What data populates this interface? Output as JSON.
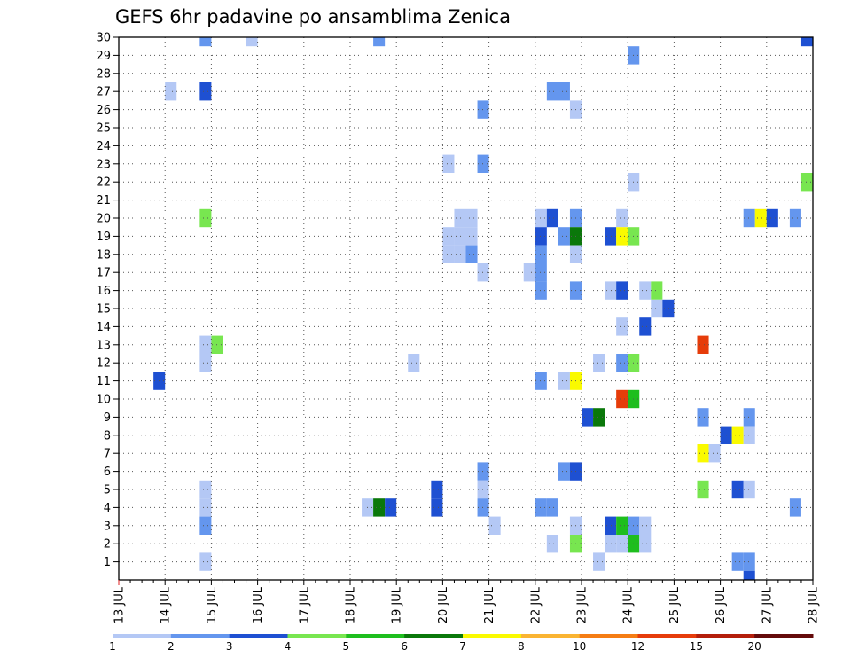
{
  "chart_data": {
    "type": "heatmap",
    "title": "GEFS 6hr padavine po ansamblima Zenica",
    "xlabel": "",
    "ylabel": "",
    "x_ticks": [
      "13 JUL",
      "14 JUL",
      "15 JUL",
      "16 JUL",
      "17 JUL",
      "18 JUL",
      "19 JUL",
      "20 JUL",
      "21 JUL",
      "22 JUL",
      "23 JUL",
      "24 JUL",
      "25 JUL",
      "26 JUL",
      "27 JUL",
      "28 JUL"
    ],
    "y_ticks": [
      1,
      2,
      3,
      4,
      5,
      6,
      7,
      8,
      9,
      10,
      11,
      12,
      13,
      14,
      15,
      16,
      17,
      18,
      19,
      20,
      21,
      22,
      23,
      24,
      25,
      26,
      27,
      28,
      29,
      30
    ],
    "x_range_days": [
      0,
      15
    ],
    "y_range": [
      0,
      30
    ],
    "grid": true,
    "legend": {
      "position": "bottom",
      "colors": [
        "#b4c8f5",
        "#6496ee",
        "#1e50d2",
        "#78e650",
        "#1ebe1e",
        "#0a780a",
        "#fafa00",
        "#fab432",
        "#f57d14",
        "#e63c0a",
        "#b41e0a",
        "#640a0a"
      ],
      "labels": [
        "1",
        "2",
        "3",
        "4",
        "5",
        "6",
        "7",
        "8",
        "10",
        "12",
        "15",
        "20"
      ]
    },
    "cells_format": "[day, member, level]",
    "cells": [
      [
        1.75,
        30,
        1
      ],
      [
        2.75,
        30,
        0
      ],
      [
        5.5,
        30,
        1
      ],
      [
        14.75,
        30,
        2
      ],
      [
        11.0,
        29,
        1
      ],
      [
        1.0,
        27,
        0
      ],
      [
        1.75,
        27,
        2
      ],
      [
        9.25,
        27,
        1
      ],
      [
        9.5,
        27,
        1
      ],
      [
        7.75,
        26,
        1
      ],
      [
        9.75,
        26,
        0
      ],
      [
        7.75,
        23,
        1
      ],
      [
        7.0,
        23,
        0
      ],
      [
        11.0,
        22,
        0
      ],
      [
        14.75,
        22,
        3
      ],
      [
        1.75,
        20,
        3
      ],
      [
        7.25,
        20,
        0
      ],
      [
        7.5,
        20,
        0
      ],
      [
        9.0,
        20,
        0
      ],
      [
        9.25,
        20,
        2
      ],
      [
        9.75,
        20,
        1
      ],
      [
        10.75,
        20,
        0
      ],
      [
        13.5,
        20,
        1
      ],
      [
        13.75,
        20,
        6
      ],
      [
        14.0,
        20,
        2
      ],
      [
        14.5,
        20,
        1
      ],
      [
        7.0,
        19,
        0
      ],
      [
        7.25,
        19,
        0
      ],
      [
        7.5,
        19,
        0
      ],
      [
        9.0,
        19,
        2
      ],
      [
        9.5,
        19,
        1
      ],
      [
        9.75,
        19,
        5
      ],
      [
        10.5,
        19,
        2
      ],
      [
        10.75,
        19,
        6
      ],
      [
        11.0,
        19,
        3
      ],
      [
        7.0,
        18,
        0
      ],
      [
        7.25,
        18,
        0
      ],
      [
        7.5,
        18,
        1
      ],
      [
        9.0,
        18,
        1
      ],
      [
        9.75,
        18,
        0
      ],
      [
        7.75,
        17,
        0
      ],
      [
        8.75,
        17,
        0
      ],
      [
        9.0,
        17,
        1
      ],
      [
        9.0,
        16,
        1
      ],
      [
        9.75,
        16,
        1
      ],
      [
        10.5,
        16,
        0
      ],
      [
        10.75,
        16,
        2
      ],
      [
        11.25,
        16,
        0
      ],
      [
        11.5,
        16,
        3
      ],
      [
        11.5,
        15,
        0
      ],
      [
        11.75,
        15,
        2
      ],
      [
        10.75,
        14,
        0
      ],
      [
        11.25,
        14,
        2
      ],
      [
        1.75,
        13,
        0
      ],
      [
        2.0,
        13,
        3
      ],
      [
        12.5,
        13,
        9
      ],
      [
        1.75,
        12,
        0
      ],
      [
        6.25,
        12,
        0
      ],
      [
        10.25,
        12,
        0
      ],
      [
        10.75,
        12,
        1
      ],
      [
        11.0,
        12,
        3
      ],
      [
        0.75,
        11,
        2
      ],
      [
        9.0,
        11,
        1
      ],
      [
        9.5,
        11,
        0
      ],
      [
        9.75,
        11,
        6
      ],
      [
        10.75,
        10,
        9
      ],
      [
        11.0,
        10,
        4
      ],
      [
        10.0,
        9,
        2
      ],
      [
        10.25,
        9,
        5
      ],
      [
        12.5,
        9,
        1
      ],
      [
        13.5,
        9,
        1
      ],
      [
        13.0,
        8,
        2
      ],
      [
        13.25,
        8,
        6
      ],
      [
        13.5,
        8,
        0
      ],
      [
        12.5,
        7,
        6
      ],
      [
        12.75,
        7,
        0
      ],
      [
        7.75,
        6,
        1
      ],
      [
        9.5,
        6,
        1
      ],
      [
        9.75,
        6,
        2
      ],
      [
        1.75,
        5,
        0
      ],
      [
        6.75,
        5,
        2
      ],
      [
        7.75,
        5,
        0
      ],
      [
        12.5,
        5,
        3
      ],
      [
        13.25,
        5,
        2
      ],
      [
        13.5,
        5,
        0
      ],
      [
        1.75,
        4,
        0
      ],
      [
        5.25,
        4,
        0
      ],
      [
        5.5,
        4,
        5
      ],
      [
        5.75,
        4,
        2
      ],
      [
        6.75,
        4,
        2
      ],
      [
        7.75,
        4,
        1
      ],
      [
        9.0,
        4,
        1
      ],
      [
        9.25,
        4,
        1
      ],
      [
        14.5,
        4,
        1
      ],
      [
        1.75,
        3,
        1
      ],
      [
        8.0,
        3,
        0
      ],
      [
        9.75,
        3,
        0
      ],
      [
        10.5,
        3,
        2
      ],
      [
        10.75,
        3,
        4
      ],
      [
        11.0,
        3,
        1
      ],
      [
        11.25,
        3,
        0
      ],
      [
        15.0,
        3,
        0
      ],
      [
        9.25,
        2,
        0
      ],
      [
        9.75,
        2,
        3
      ],
      [
        10.5,
        2,
        0
      ],
      [
        10.75,
        2,
        0
      ],
      [
        11.0,
        2,
        4
      ],
      [
        11.25,
        2,
        0
      ],
      [
        1.75,
        1,
        0
      ],
      [
        10.25,
        1,
        0
      ],
      [
        13.25,
        1,
        1
      ],
      [
        13.5,
        1,
        1
      ],
      [
        13.5,
        0,
        2
      ]
    ]
  }
}
